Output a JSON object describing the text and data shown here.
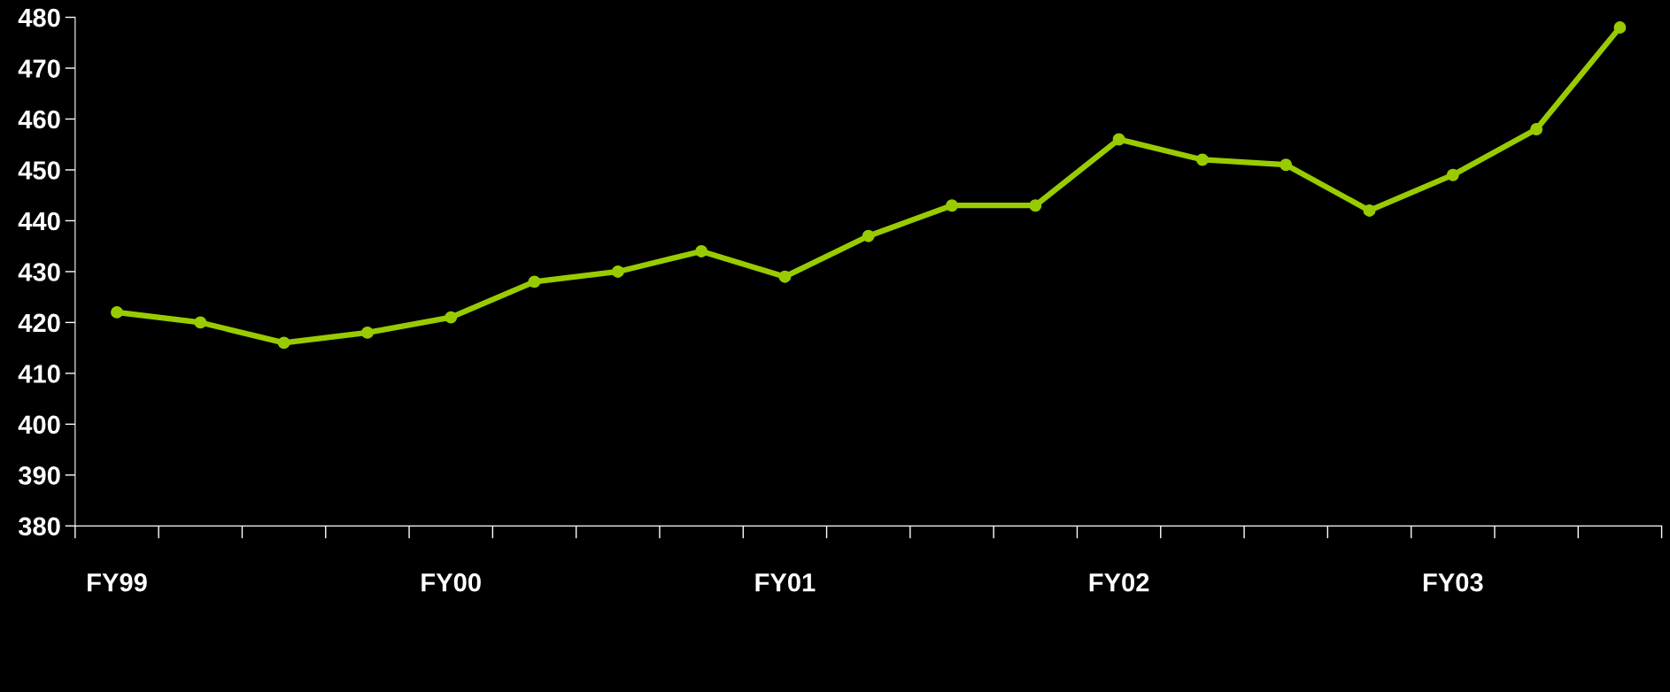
{
  "chart_data": {
    "type": "line",
    "categories": [
      "FY99",
      null,
      null,
      null,
      "FY00",
      null,
      null,
      null,
      "FY01",
      null,
      null,
      null,
      "FY02",
      null,
      null,
      null,
      "FY03",
      null,
      null
    ],
    "series": [
      {
        "color": "#99cc00",
        "values": [
          422,
          420,
          416,
          418,
          421,
          428,
          430,
          434,
          429,
          437,
          443,
          443,
          456,
          452,
          451,
          442,
          449,
          458,
          478
        ]
      }
    ],
    "ylim": [
      380,
      480
    ],
    "yticks": [
      380,
      390,
      400,
      410,
      420,
      430,
      440,
      450,
      460,
      470,
      480
    ],
    "marker": "circle",
    "line_style": "solid",
    "grid": false,
    "legend": false
  }
}
